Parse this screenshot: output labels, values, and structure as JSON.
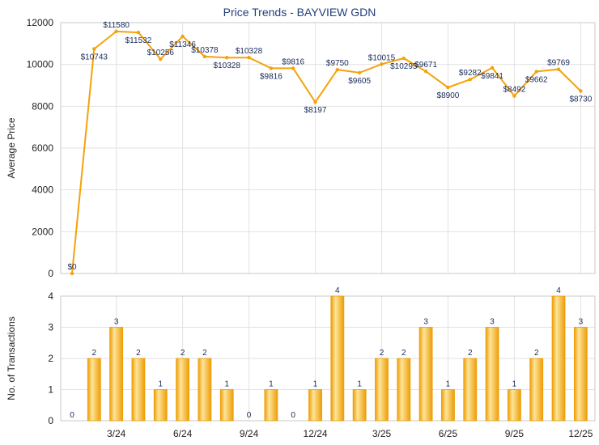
{
  "colors": {
    "line": "#f5a20a",
    "bar_light": "#fde59a",
    "bar_dark": "#ee9d06",
    "grid": "#e2e2e2",
    "title": "#1f3f7f"
  },
  "chart_data": [
    {
      "type": "line",
      "title": "Price Trends - BAYVIEW GDN",
      "xlabel": "",
      "ylabel": "Average Price",
      "ylim": [
        0,
        12000
      ],
      "yticks": [
        "0",
        "2000",
        "4000",
        "6000",
        "8000",
        "10000",
        "12000"
      ],
      "grid": true,
      "x_ticks": [
        "3/24",
        "6/24",
        "9/24",
        "12/24",
        "3/25",
        "6/25",
        "9/25",
        "12/25"
      ],
      "series": [
        {
          "values": [
            0,
            10743,
            11580,
            11532,
            10256,
            11346,
            10378,
            10328,
            10328,
            9816,
            9816,
            8197,
            9750,
            9605,
            10015,
            10295,
            9671,
            8900,
            9282,
            9841,
            8492,
            9662,
            9769,
            8730
          ],
          "labels": [
            "$0",
            "$10743",
            "$11580",
            "$11532",
            "$10256",
            "$11346",
            "$10378",
            "$10328",
            "$10328",
            "$9816",
            "$9816",
            "$8197",
            "$9750",
            "$9605",
            "$10015",
            "$10295",
            "$9671",
            "$8900",
            "$9282",
            "$9841",
            "$8492",
            "$9662",
            "$9769",
            "$8730"
          ]
        }
      ]
    },
    {
      "type": "bar",
      "xlabel": "",
      "ylabel": "No. of Transactions",
      "ylim": [
        0,
        4
      ],
      "yticks": [
        "0",
        "1",
        "2",
        "3",
        "4"
      ],
      "grid": true,
      "x_ticks": [
        "3/24",
        "6/24",
        "9/24",
        "12/24",
        "3/25",
        "6/25",
        "9/25",
        "12/25"
      ],
      "series": [
        {
          "values": [
            0,
            2,
            3,
            2,
            1,
            2,
            2,
            1,
            0,
            1,
            0,
            1,
            4,
            1,
            2,
            2,
            3,
            1,
            2,
            3,
            1,
            2,
            4,
            3
          ],
          "labels": [
            "0",
            "2",
            "3",
            "2",
            "1",
            "2",
            "2",
            "1",
            "0",
            "1",
            "0",
            "1",
            "4",
            "1",
            "2",
            "2",
            "3",
            "1",
            "2",
            "3",
            "1",
            "2",
            "4",
            "3"
          ]
        }
      ]
    }
  ]
}
